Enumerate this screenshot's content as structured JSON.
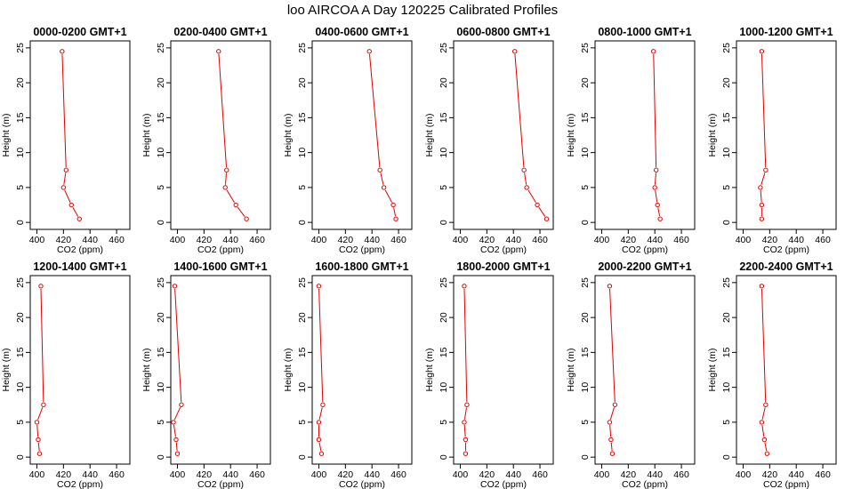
{
  "title": "loo AIRCOA A  Day 120225  Calibrated Profiles",
  "colors": {
    "line": "#e00000",
    "axis": "#000000",
    "background": "#ffffff"
  },
  "chart_data": [
    {
      "type": "line",
      "title": "0000-0200 GMT+1",
      "xlabel": "CO2 (ppm)",
      "ylabel": "Height (m)",
      "xlim": [
        395,
        470
      ],
      "ylim": [
        -1,
        26
      ],
      "xticks": [
        400,
        420,
        440,
        460
      ],
      "yticks": [
        0,
        5,
        10,
        15,
        20,
        25
      ],
      "x": [
        432,
        426,
        420,
        422,
        419
      ],
      "y": [
        0.5,
        2.5,
        5,
        7.5,
        24.5
      ]
    },
    {
      "type": "line",
      "title": "0200-0400 GMT+1",
      "xlabel": "CO2 (ppm)",
      "ylabel": "Height (m)",
      "xlim": [
        395,
        470
      ],
      "ylim": [
        -1,
        26
      ],
      "xticks": [
        400,
        420,
        440,
        460
      ],
      "yticks": [
        0,
        5,
        10,
        15,
        20,
        25
      ],
      "x": [
        452,
        444,
        436,
        437,
        431
      ],
      "y": [
        0.5,
        2.5,
        5,
        7.5,
        24.5
      ]
    },
    {
      "type": "line",
      "title": "0400-0600 GMT+1",
      "xlabel": "CO2 (ppm)",
      "ylabel": "Height (m)",
      "xlim": [
        395,
        470
      ],
      "ylim": [
        -1,
        26
      ],
      "xticks": [
        400,
        420,
        440,
        460
      ],
      "yticks": [
        0,
        5,
        10,
        15,
        20,
        25
      ],
      "x": [
        458,
        456,
        449,
        446,
        438
      ],
      "y": [
        0.5,
        2.5,
        5,
        7.5,
        24.5
      ]
    },
    {
      "type": "line",
      "title": "0600-0800 GMT+1",
      "xlabel": "CO2 (ppm)",
      "ylabel": "Height (m)",
      "xlim": [
        395,
        470
      ],
      "ylim": [
        -1,
        26
      ],
      "xticks": [
        400,
        420,
        440,
        460
      ],
      "yticks": [
        0,
        5,
        10,
        15,
        20,
        25
      ],
      "x": [
        465,
        458,
        450,
        448,
        441
      ],
      "y": [
        0.5,
        2.5,
        5,
        7.5,
        24.5
      ]
    },
    {
      "type": "line",
      "title": "0800-1000 GMT+1",
      "xlabel": "CO2 (ppm)",
      "ylabel": "Height (m)",
      "xlim": [
        395,
        470
      ],
      "ylim": [
        -1,
        26
      ],
      "xticks": [
        400,
        420,
        440,
        460
      ],
      "yticks": [
        0,
        5,
        10,
        15,
        20,
        25
      ],
      "x": [
        444,
        442,
        440,
        441,
        439
      ],
      "y": [
        0.5,
        2.5,
        5,
        7.5,
        24.5
      ]
    },
    {
      "type": "line",
      "title": "1000-1200 GMT+1",
      "xlabel": "CO2 (ppm)",
      "ylabel": "Height (m)",
      "xlim": [
        395,
        470
      ],
      "ylim": [
        -1,
        26
      ],
      "xticks": [
        400,
        420,
        440,
        460
      ],
      "yticks": [
        0,
        5,
        10,
        15,
        20,
        25
      ],
      "x": [
        414,
        414,
        413,
        417,
        414
      ],
      "y": [
        0.5,
        2.5,
        5,
        7.5,
        24.5
      ]
    },
    {
      "type": "line",
      "title": "1200-1400 GMT+1",
      "xlabel": "CO2 (ppm)",
      "ylabel": "Height (m)",
      "xlim": [
        395,
        470
      ],
      "ylim": [
        -1,
        26
      ],
      "xticks": [
        400,
        420,
        440,
        460
      ],
      "yticks": [
        0,
        5,
        10,
        15,
        20,
        25
      ],
      "x": [
        402,
        401,
        400,
        405,
        403
      ],
      "y": [
        0.5,
        2.5,
        5,
        7.5,
        24.5
      ]
    },
    {
      "type": "line",
      "title": "1400-1600 GMT+1",
      "xlabel": "CO2 (ppm)",
      "ylabel": "Height (m)",
      "xlim": [
        395,
        470
      ],
      "ylim": [
        -1,
        26
      ],
      "xticks": [
        400,
        420,
        440,
        460
      ],
      "yticks": [
        0,
        5,
        10,
        15,
        20,
        25
      ],
      "x": [
        400,
        399,
        397,
        403,
        398
      ],
      "y": [
        0.5,
        2.5,
        5,
        7.5,
        24.5
      ]
    },
    {
      "type": "line",
      "title": "1600-1800 GMT+1",
      "xlabel": "CO2 (ppm)",
      "ylabel": "Height (m)",
      "xlim": [
        395,
        470
      ],
      "ylim": [
        -1,
        26
      ],
      "xticks": [
        400,
        420,
        440,
        460
      ],
      "yticks": [
        0,
        5,
        10,
        15,
        20,
        25
      ],
      "x": [
        402,
        400,
        400,
        403,
        400
      ],
      "y": [
        0.5,
        2.5,
        5,
        7.5,
        24.5
      ]
    },
    {
      "type": "line",
      "title": "1800-2000 GMT+1",
      "xlabel": "CO2 (ppm)",
      "ylabel": "Height (m)",
      "xlim": [
        395,
        470
      ],
      "ylim": [
        -1,
        26
      ],
      "xticks": [
        400,
        420,
        440,
        460
      ],
      "yticks": [
        0,
        5,
        10,
        15,
        20,
        25
      ],
      "x": [
        404,
        404,
        403,
        405,
        403
      ],
      "y": [
        0.5,
        2.5,
        5,
        7.5,
        24.5
      ]
    },
    {
      "type": "line",
      "title": "2000-2200 GMT+1",
      "xlabel": "CO2 (ppm)",
      "ylabel": "Height (m)",
      "xlim": [
        395,
        470
      ],
      "ylim": [
        -1,
        26
      ],
      "xticks": [
        400,
        420,
        440,
        460
      ],
      "yticks": [
        0,
        5,
        10,
        15,
        20,
        25
      ],
      "x": [
        408,
        407,
        406,
        410,
        406
      ],
      "y": [
        0.5,
        2.5,
        5,
        7.5,
        24.5
      ]
    },
    {
      "type": "line",
      "title": "2200-2400 GMT+1",
      "xlabel": "CO2 (ppm)",
      "ylabel": "Height (m)",
      "xlim": [
        395,
        470
      ],
      "ylim": [
        -1,
        26
      ],
      "xticks": [
        400,
        420,
        440,
        460
      ],
      "yticks": [
        0,
        5,
        10,
        15,
        20,
        25
      ],
      "x": [
        418,
        416,
        414,
        417,
        414
      ],
      "y": [
        0.5,
        2.5,
        5,
        7.5,
        24.5
      ]
    }
  ]
}
